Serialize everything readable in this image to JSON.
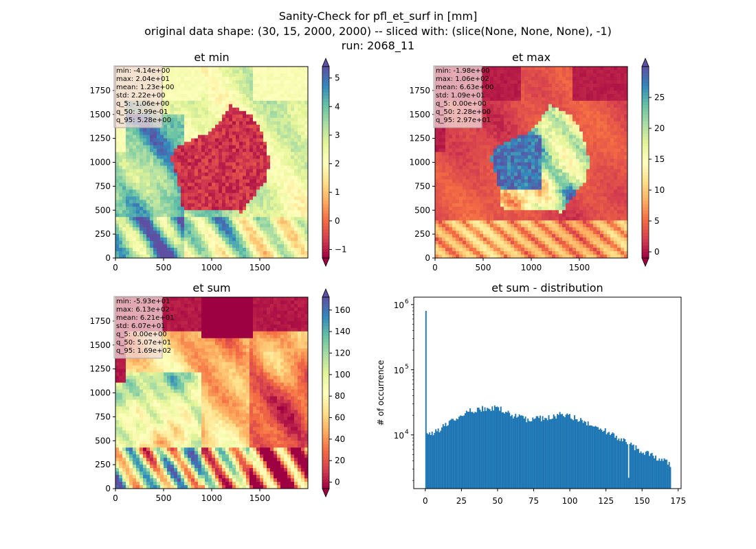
{
  "figure": {
    "title_line1": "Sanity-Check for pfl_et_surf in [mm]",
    "title_line2": "original data shape: (30, 15, 2000, 2000) -- sliced with: (slice(None, None, None), -1)",
    "title_line3": "run: 2068_11"
  },
  "colors": {
    "bar": "#1f77b4",
    "spectral": [
      "#9e0142",
      "#d53e4f",
      "#f46d43",
      "#fdae61",
      "#fee08b",
      "#ffffbf",
      "#e6f598",
      "#abdda4",
      "#66c2a5",
      "#3288bd",
      "#5e4fa2"
    ],
    "stats_box_bg": "#f2dada"
  },
  "chart_data": [
    {
      "type": "heatmap",
      "title": "et min",
      "colormap": "Spectral",
      "xlim": [
        0,
        2000
      ],
      "ylim": [
        0,
        2000
      ],
      "xticks": [
        "0",
        "500",
        "1000",
        "1500"
      ],
      "yticks": [
        "0",
        "250",
        "500",
        "750",
        "1000",
        "1250",
        "1500",
        "1750"
      ],
      "colorbar": {
        "range": [
          -1.3,
          5.4
        ],
        "ticks": [
          "−1",
          "0",
          "1",
          "2",
          "3",
          "4",
          "5"
        ],
        "tick_values": [
          -1,
          0,
          1,
          2,
          3,
          4,
          5
        ]
      },
      "stats": [
        "min: -4.14e+00",
        "max: 2.04e+01",
        "mean: 1.23e+00",
        "std: 2.22e+00",
        "q_5: -1.06e+00",
        "q_50: 3.99e-01",
        "q_95: 5.28e+00"
      ]
    },
    {
      "type": "heatmap",
      "title": "et max",
      "colormap": "Spectral",
      "xlim": [
        0,
        2000
      ],
      "ylim": [
        0,
        2000
      ],
      "xticks": [
        "0",
        "500",
        "1000",
        "1500"
      ],
      "yticks": [
        "0",
        "250",
        "500",
        "750",
        "1000",
        "1250",
        "1500",
        "1750"
      ],
      "colorbar": {
        "range": [
          -1,
          30
        ],
        "ticks": [
          "0",
          "5",
          "10",
          "15",
          "20",
          "25"
        ],
        "tick_values": [
          0,
          5,
          10,
          15,
          20,
          25
        ]
      },
      "stats": [
        "min: -1.98e+00",
        "max: 1.06e+02",
        "mean: 6.63e+00",
        "std: 1.09e+01",
        "q_5: 0.00e+00",
        "q_50: 2.28e+00",
        "q_95: 2.97e+01"
      ]
    },
    {
      "type": "heatmap",
      "title": "et sum",
      "colormap": "Spectral",
      "xlim": [
        0,
        2000
      ],
      "ylim": [
        0,
        2000
      ],
      "xticks": [
        "0",
        "500",
        "1000",
        "1500"
      ],
      "yticks": [
        "0",
        "250",
        "500",
        "750",
        "1000",
        "1250",
        "1500",
        "1750"
      ],
      "colorbar": {
        "range": [
          -6,
          172
        ],
        "ticks": [
          "0",
          "20",
          "40",
          "60",
          "80",
          "100",
          "120",
          "140",
          "160"
        ],
        "tick_values": [
          0,
          20,
          40,
          60,
          80,
          100,
          120,
          140,
          160
        ]
      },
      "stats": [
        "min: -5.93e+01",
        "max: 6.13e+02",
        "mean: 6.21e+01",
        "std: 6.07e+01",
        "q_5: 0.00e+00",
        "q_50: 5.07e+01",
        "q_95: 1.69e+02"
      ]
    },
    {
      "type": "bar",
      "title": "et sum - distribution",
      "xlabel": "",
      "ylabel": "# of occurrence",
      "yscale": "log",
      "xlim": [
        -8,
        177
      ],
      "ylim": [
        1500,
        1300000
      ],
      "xticks": [
        "0",
        "25",
        "50",
        "75",
        "100",
        "125",
        "150",
        "175"
      ],
      "xtick_values": [
        0,
        25,
        50,
        75,
        100,
        125,
        150,
        175
      ],
      "yticks": [
        "10",
        "10",
        "10"
      ],
      "ytick_exponents": [
        "4",
        "5",
        "6"
      ],
      "ytick_values": [
        10000,
        100000,
        1000000
      ],
      "bin_width": 0.85,
      "bin_start": 0,
      "spike": {
        "x": 0,
        "value": 800000
      },
      "profile": [
        [
          1,
          9800
        ],
        [
          10,
          12500
        ],
        [
          20,
          17000
        ],
        [
          30,
          23000
        ],
        [
          40,
          25500
        ],
        [
          50,
          26000
        ],
        [
          60,
          20000
        ],
        [
          70,
          17500
        ],
        [
          80,
          18000
        ],
        [
          90,
          19500
        ],
        [
          95,
          21000
        ],
        [
          100,
          19000
        ],
        [
          110,
          16000
        ],
        [
          120,
          13000
        ],
        [
          130,
          10000
        ],
        [
          140,
          7500
        ],
        [
          150,
          5500
        ],
        [
          160,
          4500
        ],
        [
          169,
          3600
        ]
      ]
    }
  ]
}
